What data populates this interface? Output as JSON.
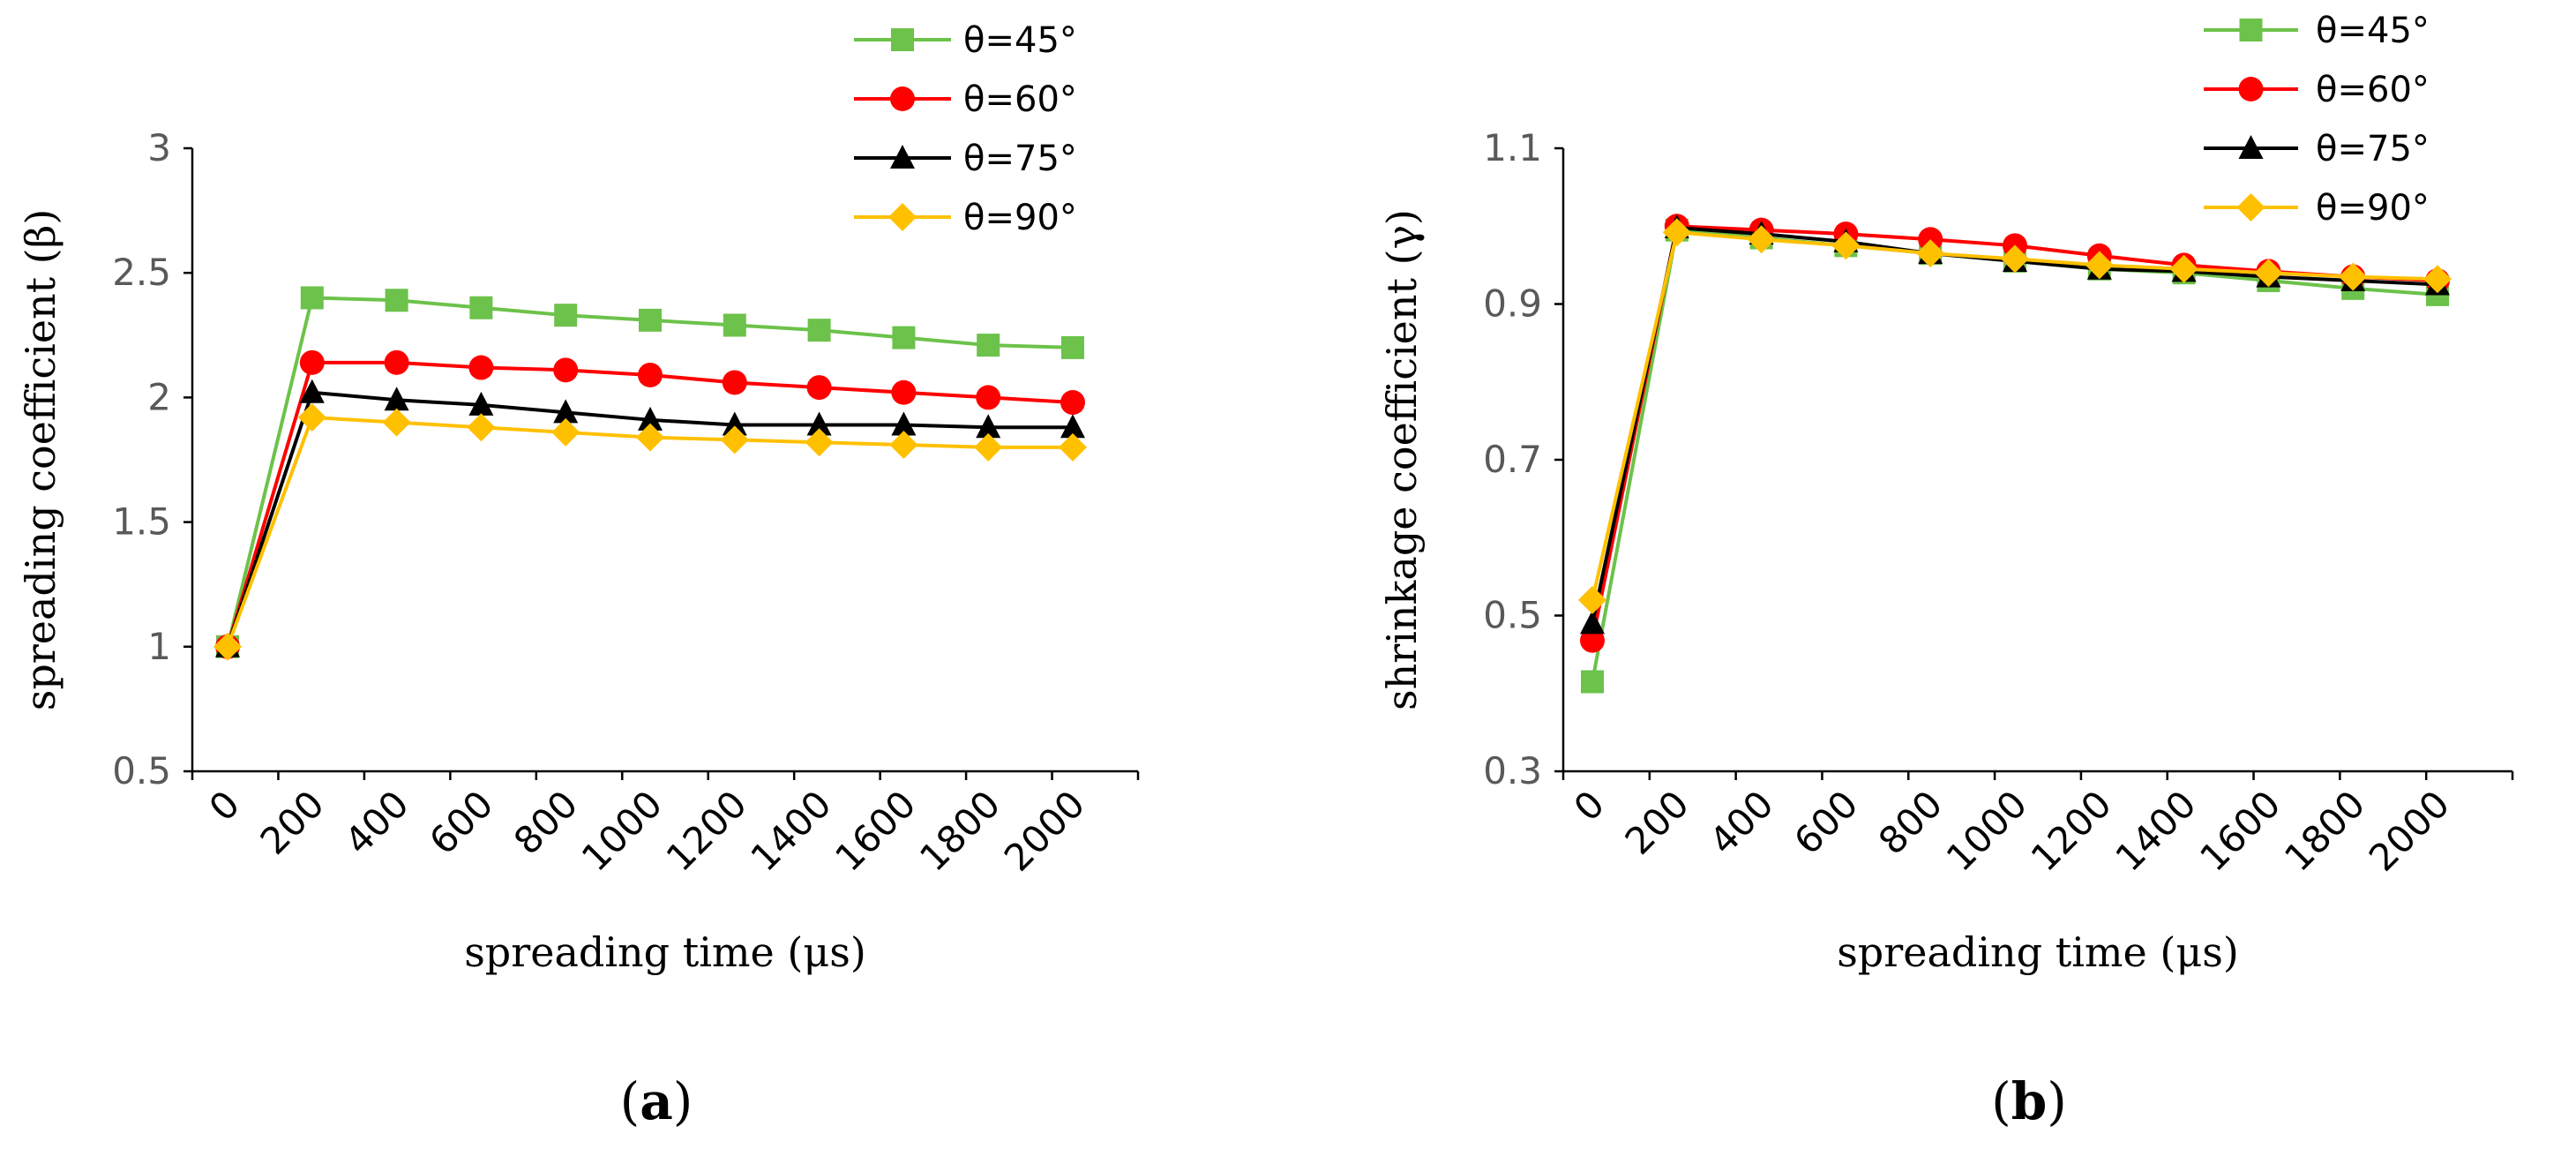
{
  "chart_data": [
    {
      "type": "line",
      "panel_label": "a",
      "xlabel": "spreading time (μs)",
      "ylabel": "spreading coefficient (β)",
      "ylim": [
        0.5,
        3
      ],
      "yticks": [
        "0.5",
        "1",
        "1.5",
        "2",
        "2.5",
        "3"
      ],
      "categories": [
        "0",
        "200",
        "400",
        "600",
        "800",
        "1000",
        "1200",
        "1400",
        "1600",
        "1800",
        "2000"
      ],
      "legend_position": "top-right",
      "series": [
        {
          "name": "θ=45°",
          "color": "#6CC24A",
          "marker": "square",
          "values": [
            1.0,
            2.4,
            2.39,
            2.36,
            2.33,
            2.31,
            2.29,
            2.27,
            2.24,
            2.21,
            2.2
          ]
        },
        {
          "name": "θ=60°",
          "color": "#FF0000",
          "marker": "circle",
          "values": [
            1.0,
            2.14,
            2.14,
            2.12,
            2.11,
            2.09,
            2.06,
            2.04,
            2.02,
            2.0,
            1.98
          ]
        },
        {
          "name": "θ=75°",
          "color": "#000000",
          "marker": "triangle",
          "values": [
            1.0,
            2.02,
            1.99,
            1.97,
            1.94,
            1.91,
            1.89,
            1.89,
            1.89,
            1.88,
            1.88
          ]
        },
        {
          "name": "θ=90°",
          "color": "#FFC000",
          "marker": "diamond",
          "values": [
            1.0,
            1.92,
            1.9,
            1.88,
            1.86,
            1.84,
            1.83,
            1.82,
            1.81,
            1.8,
            1.8
          ]
        }
      ]
    },
    {
      "type": "line",
      "panel_label": "b",
      "xlabel": "spreading time (μs)",
      "ylabel": "shrinkage coefficient (γ)",
      "ylim": [
        0.3,
        1.1
      ],
      "yticks": [
        "0.3",
        "0.5",
        "0.7",
        "0.9",
        "1.1"
      ],
      "categories": [
        "0",
        "200",
        "400",
        "600",
        "800",
        "1000",
        "1200",
        "1400",
        "1600",
        "1800",
        "2000"
      ],
      "legend_position": "top-right",
      "series": [
        {
          "name": "θ=45°",
          "color": "#6CC24A",
          "marker": "square",
          "values": [
            0.415,
            0.995,
            0.985,
            0.975,
            0.965,
            0.955,
            0.945,
            0.94,
            0.93,
            0.92,
            0.912
          ]
        },
        {
          "name": "θ=60°",
          "color": "#FF0000",
          "marker": "circle",
          "values": [
            0.468,
            1.0,
            0.995,
            0.99,
            0.983,
            0.975,
            0.962,
            0.95,
            0.942,
            0.935,
            0.93
          ]
        },
        {
          "name": "θ=75°",
          "color": "#000000",
          "marker": "triangle",
          "values": [
            0.49,
            0.998,
            0.99,
            0.98,
            0.965,
            0.955,
            0.945,
            0.942,
            0.935,
            0.93,
            0.925
          ]
        },
        {
          "name": "θ=90°",
          "color": "#FFC000",
          "marker": "diamond",
          "values": [
            0.52,
            0.992,
            0.983,
            0.975,
            0.965,
            0.958,
            0.95,
            0.945,
            0.94,
            0.935,
            0.932
          ]
        }
      ]
    }
  ]
}
